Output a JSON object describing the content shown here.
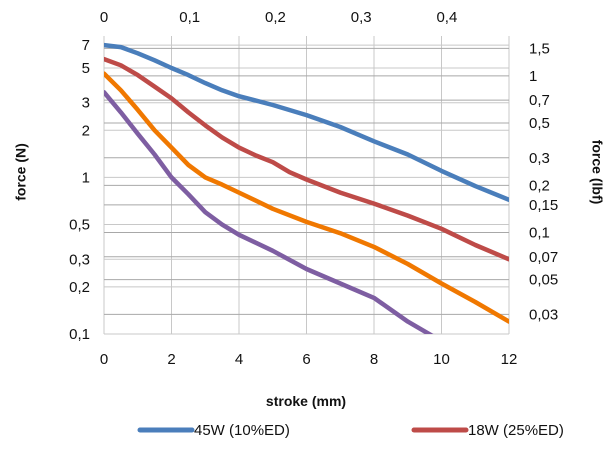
{
  "chart_data": {
    "type": "line",
    "xlabel": "stroke (mm)",
    "ylabel": "force (N)",
    "y2label": "force (lbf)",
    "xlim": [
      0,
      12
    ],
    "x_ticks": [
      0,
      2,
      4,
      6,
      8,
      10,
      12
    ],
    "x_ticklabels": [
      "0",
      "2",
      "4",
      "6",
      "8",
      "10",
      "12"
    ],
    "x2_ticks_in": [
      0,
      0.1,
      0.2,
      0.3,
      0.4
    ],
    "x2_ticklabels": [
      "0",
      "0,1",
      "0,2",
      "0,3",
      "0,4"
    ],
    "y_scale": "log",
    "ylim": [
      0.1,
      8
    ],
    "y_ticks": [
      0.1,
      0.2,
      0.3,
      0.5,
      1,
      2,
      3,
      5,
      7
    ],
    "y_ticklabels": [
      "0,1",
      "0,2",
      "0,3",
      "0,5",
      "1",
      "2",
      "3",
      "5",
      "7"
    ],
    "y2_ticks_lbf": [
      0.03,
      0.05,
      0.07,
      0.1,
      0.15,
      0.2,
      0.3,
      0.5,
      0.7,
      1,
      1.5
    ],
    "y2_ticklabels": [
      "0,03",
      "0,05",
      "0,07",
      "0,1",
      "0,15",
      "0,2",
      "0,3",
      "0,5",
      "0,7",
      "1",
      "1,5"
    ],
    "grid": true,
    "legend_position": "bottom",
    "series": [
      {
        "name": "45W (10%ED)",
        "color": "#4a7ebb",
        "x": [
          0,
          0.5,
          1,
          1.5,
          2,
          2.5,
          3,
          3.5,
          4,
          5,
          6,
          7,
          8,
          9,
          10,
          11,
          12
        ],
        "y": [
          7.0,
          6.8,
          6.2,
          5.6,
          5.0,
          4.5,
          4.0,
          3.6,
          3.3,
          2.9,
          2.5,
          2.1,
          1.7,
          1.4,
          1.1,
          0.88,
          0.72
        ]
      },
      {
        "name": "18W (25%ED)",
        "color": "#be4b48",
        "x": [
          0,
          0.5,
          1,
          1.5,
          2,
          2.5,
          3,
          3.5,
          4,
          4.5,
          5,
          5.5,
          6,
          7,
          8,
          9,
          10,
          11,
          12
        ],
        "y": [
          5.7,
          5.2,
          4.5,
          3.8,
          3.2,
          2.6,
          2.15,
          1.8,
          1.55,
          1.38,
          1.25,
          1.08,
          0.97,
          0.8,
          0.68,
          0.57,
          0.47,
          0.37,
          0.3
        ]
      },
      {
        "name": "",
        "color": "#f07800",
        "x": [
          0,
          0.5,
          1,
          1.5,
          2,
          2.5,
          3,
          3.5,
          4,
          5,
          6,
          7,
          8,
          9,
          10,
          11,
          12
        ],
        "y": [
          4.6,
          3.6,
          2.7,
          2.0,
          1.55,
          1.2,
          1.0,
          0.9,
          0.8,
          0.63,
          0.52,
          0.44,
          0.36,
          0.28,
          0.21,
          0.16,
          0.12
        ]
      },
      {
        "name": "",
        "color": "#7e5ea2",
        "x": [
          0,
          0.5,
          1,
          1.5,
          2,
          2.5,
          3,
          3.5,
          4,
          5,
          6,
          7,
          8,
          9,
          10
        ],
        "y": [
          3.5,
          2.6,
          1.9,
          1.4,
          1.0,
          0.78,
          0.6,
          0.5,
          0.43,
          0.34,
          0.26,
          0.21,
          0.17,
          0.12,
          0.09
        ]
      }
    ]
  }
}
